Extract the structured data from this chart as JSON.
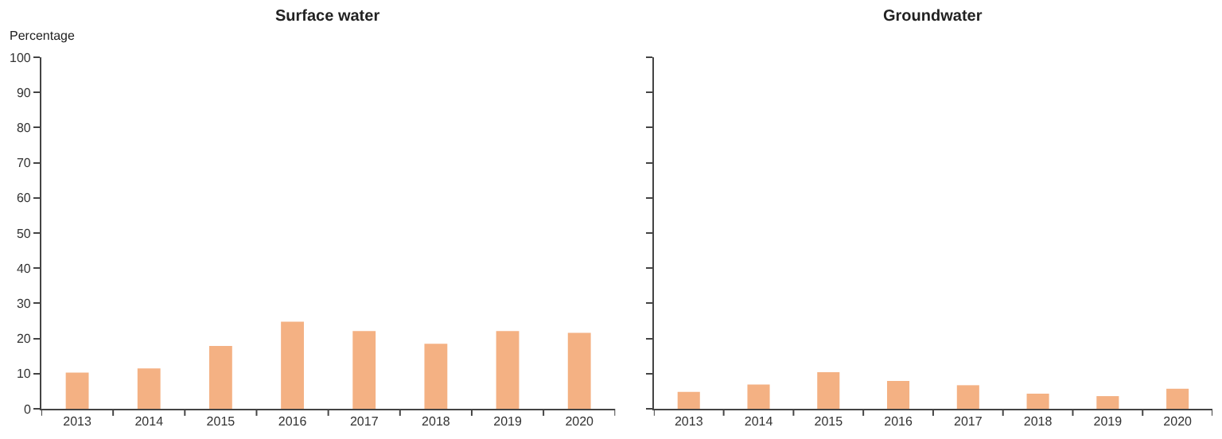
{
  "chart_data": [
    {
      "type": "bar",
      "title": "Surface water",
      "ylabel": "Percentage",
      "categories": [
        "2013",
        "2014",
        "2015",
        "2016",
        "2017",
        "2018",
        "2019",
        "2020"
      ],
      "values": [
        10.3,
        11.5,
        17.9,
        24.8,
        22.1,
        18.5,
        22.1,
        21.6
      ],
      "color": "#f4b183",
      "ylim": [
        0,
        100
      ],
      "yticks": [
        0,
        10,
        20,
        30,
        40,
        50,
        60,
        70,
        80,
        90,
        100
      ]
    },
    {
      "type": "bar",
      "title": "Groundwater",
      "categories": [
        "2013",
        "2014",
        "2015",
        "2016",
        "2017",
        "2018",
        "2019",
        "2020"
      ],
      "values": [
        4.8,
        6.9,
        10.4,
        7.9,
        6.7,
        4.3,
        3.6,
        5.7
      ],
      "color": "#f4b183",
      "ylim": [
        0,
        100
      ],
      "yticks": [
        0,
        10,
        20,
        30,
        40,
        50,
        60,
        70,
        80,
        90,
        100
      ],
      "tick_labels": "x"
    }
  ]
}
